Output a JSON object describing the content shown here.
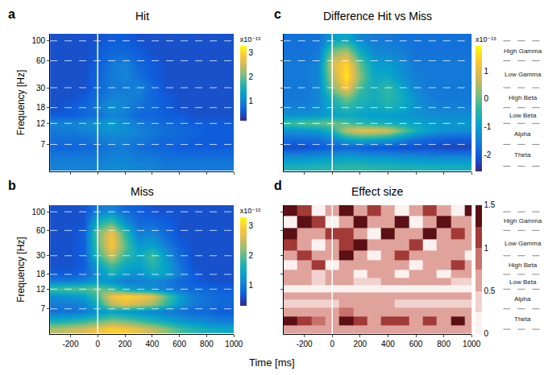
{
  "figure": {
    "xlabel": "Time [ms]"
  },
  "chart_data": [
    {
      "type": "heatmap",
      "panel": "a",
      "title": "Hit",
      "ylabel": "Frequency [Hz]",
      "log": "y",
      "grid": true,
      "tick_labels": "y",
      "color": "parula",
      "onset_ms": 0,
      "x": [
        -300,
        -200,
        -100,
        0,
        100,
        200,
        300,
        400,
        500,
        600,
        700,
        800,
        900,
        1000
      ],
      "y": [
        4,
        5,
        6.5,
        8,
        10,
        12,
        15,
        18,
        23,
        30,
        40,
        55,
        75,
        105
      ],
      "xlim": [
        -350,
        1000
      ],
      "xticks": [
        -200,
        0,
        200,
        400,
        600,
        800,
        1000
      ],
      "ylim": [
        3.5,
        120
      ],
      "yticks": [
        7,
        12,
        18,
        30,
        60,
        100
      ],
      "colorbar": {
        "title": "x10⁻¹⁵",
        "range": [
          0.2,
          3.3
        ],
        "ticks": [
          1,
          2,
          3
        ]
      },
      "z": [
        [
          1.0,
          1.0,
          1.0,
          1.0,
          1.1,
          1.1,
          1.0,
          1.0,
          0.9,
          0.9,
          0.9,
          0.9,
          0.9,
          0.9
        ],
        [
          0.9,
          0.9,
          0.9,
          0.9,
          1.0,
          1.0,
          0.9,
          0.9,
          0.8,
          0.8,
          0.8,
          0.8,
          0.8,
          0.8
        ],
        [
          0.7,
          0.7,
          0.7,
          0.8,
          0.9,
          0.9,
          0.8,
          0.7,
          0.7,
          0.6,
          0.6,
          0.6,
          0.6,
          0.6
        ],
        [
          0.8,
          0.8,
          0.8,
          0.9,
          1.0,
          1.0,
          0.9,
          0.8,
          0.7,
          0.7,
          0.6,
          0.6,
          0.6,
          0.6
        ],
        [
          0.9,
          0.9,
          1.0,
          1.1,
          1.2,
          1.1,
          1.0,
          0.9,
          0.8,
          0.7,
          0.7,
          0.6,
          0.6,
          0.6
        ],
        [
          1.0,
          1.0,
          1.1,
          1.2,
          1.3,
          1.1,
          0.9,
          0.8,
          0.7,
          0.7,
          0.6,
          0.6,
          0.6,
          0.6
        ],
        [
          0.6,
          0.6,
          0.7,
          0.8,
          1.0,
          0.9,
          0.7,
          0.7,
          0.6,
          0.6,
          0.5,
          0.5,
          0.5,
          0.5
        ],
        [
          0.5,
          0.6,
          0.7,
          0.9,
          1.2,
          1.0,
          0.8,
          0.7,
          0.6,
          0.5,
          0.5,
          0.5,
          0.5,
          0.5
        ],
        [
          0.5,
          0.5,
          0.6,
          0.8,
          1.0,
          1.0,
          0.9,
          0.7,
          0.6,
          0.5,
          0.5,
          0.5,
          0.5,
          0.5
        ],
        [
          0.5,
          0.5,
          0.5,
          0.7,
          0.9,
          0.9,
          1.0,
          0.7,
          0.5,
          0.5,
          0.5,
          0.5,
          0.5,
          0.5
        ],
        [
          0.5,
          0.5,
          0.5,
          0.7,
          0.9,
          1.0,
          0.8,
          0.6,
          0.5,
          0.5,
          0.5,
          0.5,
          0.5,
          0.5
        ],
        [
          0.5,
          0.5,
          0.5,
          0.6,
          0.9,
          1.0,
          0.7,
          0.6,
          0.5,
          0.5,
          0.5,
          0.5,
          0.5,
          0.5
        ],
        [
          0.5,
          0.5,
          0.5,
          0.6,
          0.7,
          0.7,
          0.6,
          0.5,
          0.5,
          0.5,
          0.5,
          0.5,
          0.5,
          0.5
        ],
        [
          0.5,
          0.5,
          0.5,
          0.5,
          0.6,
          0.6,
          0.5,
          0.5,
          0.5,
          0.5,
          0.5,
          0.5,
          0.5,
          0.5
        ]
      ]
    },
    {
      "type": "heatmap",
      "panel": "b",
      "title": "Miss",
      "ylabel": "Frequency [Hz]",
      "log": "y",
      "grid": true,
      "tick_labels": true,
      "color": "parula",
      "onset_ms": 0,
      "x": [
        -300,
        -200,
        -100,
        0,
        100,
        200,
        300,
        400,
        500,
        600,
        700,
        800,
        900,
        1000
      ],
      "y": [
        4,
        5,
        6.5,
        8,
        10,
        12,
        15,
        18,
        23,
        30,
        40,
        55,
        75,
        105
      ],
      "xlim": [
        -350,
        1000
      ],
      "xticks": [
        -200,
        0,
        200,
        400,
        600,
        800,
        1000
      ],
      "ylim": [
        3.5,
        120
      ],
      "yticks": [
        7,
        12,
        18,
        30,
        60,
        100
      ],
      "colorbar": {
        "title": "x10⁻¹⁵",
        "range": [
          0.3,
          3.3
        ],
        "ticks": [
          1,
          2,
          3
        ]
      },
      "z": [
        [
          2.4,
          2.5,
          2.6,
          2.8,
          3.0,
          2.9,
          2.7,
          2.5,
          2.2,
          1.9,
          1.7,
          1.6,
          1.5,
          1.5
        ],
        [
          1.6,
          1.7,
          1.8,
          2.0,
          2.2,
          2.1,
          1.9,
          1.7,
          1.5,
          1.3,
          1.2,
          1.1,
          1.0,
          1.0
        ],
        [
          0.9,
          0.9,
          1.0,
          1.2,
          1.4,
          1.3,
          1.2,
          1.1,
          1.0,
          0.9,
          0.8,
          0.8,
          0.7,
          0.7
        ],
        [
          1.0,
          1.0,
          1.1,
          1.6,
          2.4,
          2.7,
          2.5,
          2.3,
          1.8,
          1.3,
          1.0,
          0.9,
          0.8,
          0.8
        ],
        [
          1.2,
          1.3,
          1.4,
          1.9,
          2.8,
          3.0,
          2.9,
          2.7,
          2.0,
          1.4,
          1.0,
          0.9,
          0.8,
          0.8
        ],
        [
          1.9,
          2.0,
          2.0,
          2.1,
          1.9,
          1.5,
          1.3,
          1.2,
          1.0,
          0.9,
          0.8,
          0.8,
          0.7,
          0.7
        ],
        [
          1.0,
          1.0,
          1.1,
          1.3,
          1.2,
          1.0,
          1.0,
          1.1,
          1.0,
          0.8,
          0.7,
          0.6,
          0.6,
          0.6
        ],
        [
          0.7,
          0.7,
          0.8,
          1.2,
          1.6,
          1.3,
          1.2,
          1.5,
          1.4,
          1.0,
          0.7,
          0.6,
          0.6,
          0.6
        ],
        [
          0.6,
          0.6,
          0.7,
          1.4,
          1.9,
          1.5,
          1.4,
          1.7,
          1.4,
          0.9,
          0.6,
          0.6,
          0.6,
          0.6
        ],
        [
          0.6,
          0.6,
          0.7,
          1.8,
          2.5,
          1.8,
          1.5,
          1.9,
          1.3,
          0.8,
          0.6,
          0.6,
          0.6,
          0.6
        ],
        [
          0.6,
          0.6,
          0.7,
          2.0,
          2.9,
          2.0,
          1.3,
          1.4,
          1.0,
          0.7,
          0.6,
          0.6,
          0.6,
          0.6
        ],
        [
          0.6,
          0.6,
          0.7,
          2.1,
          2.8,
          1.8,
          1.0,
          1.1,
          0.8,
          0.6,
          0.6,
          0.6,
          0.6,
          0.6
        ],
        [
          0.6,
          0.6,
          0.6,
          1.6,
          1.9,
          1.2,
          0.8,
          0.8,
          0.7,
          0.6,
          0.6,
          0.6,
          0.6,
          0.6
        ],
        [
          0.6,
          0.6,
          0.6,
          1.0,
          1.1,
          0.8,
          0.7,
          0.6,
          0.6,
          0.6,
          0.6,
          0.6,
          0.6,
          0.6
        ]
      ]
    },
    {
      "type": "heatmap",
      "panel": "c",
      "title": "Difference Hit vs Miss",
      "log": "y",
      "grid": true,
      "tick_labels": false,
      "color": "parula",
      "onset_ms": 0,
      "x": [
        -300,
        -200,
        -100,
        0,
        100,
        200,
        300,
        400,
        500,
        600,
        700,
        800,
        900,
        1000
      ],
      "y": [
        4,
        5,
        6.5,
        8,
        10,
        12,
        15,
        18,
        23,
        30,
        40,
        55,
        75,
        105
      ],
      "xlim": [
        -350,
        1000
      ],
      "xticks": [
        -200,
        0,
        200,
        400,
        600,
        800,
        1000
      ],
      "ylim": [
        3.5,
        120
      ],
      "yticks": [
        7,
        12,
        18,
        30,
        60,
        100
      ],
      "colorbar": {
        "title": "x10⁻¹⁵",
        "range": [
          -2.6,
          1.9
        ],
        "ticks": [
          -2,
          -1,
          0,
          1
        ]
      },
      "bands": [
        {
          "label": "Theta",
          "from": 4,
          "to": 7
        },
        {
          "label": "Alpha",
          "from": 7,
          "to": 12
        },
        {
          "label": "Low Beta",
          "from": 12,
          "to": 18
        },
        {
          "label": "High Beta",
          "from": 18,
          "to": 30
        },
        {
          "label": "Low Gamma",
          "from": 30,
          "to": 60
        },
        {
          "label": "High Gamma",
          "from": 60,
          "to": 100
        }
      ],
      "z": [
        [
          -0.6,
          -0.6,
          -0.5,
          -0.5,
          -0.4,
          -0.4,
          -0.5,
          -0.5,
          -0.6,
          -0.6,
          -0.6,
          -0.7,
          -0.7,
          -0.7
        ],
        [
          -1.2,
          -1.2,
          -1.1,
          -1.0,
          -0.9,
          -1.0,
          -1.1,
          -1.1,
          -1.2,
          -1.2,
          -1.3,
          -1.3,
          -1.3,
          -1.3
        ],
        [
          -2.2,
          -2.2,
          -2.1,
          -2.0,
          -1.9,
          -2.0,
          -2.1,
          -2.1,
          -2.2,
          -2.2,
          -2.2,
          -2.3,
          -2.3,
          -2.3
        ],
        [
          -1.8,
          -1.8,
          -1.7,
          -1.4,
          -0.9,
          -0.7,
          -0.8,
          -1.0,
          -1.4,
          -1.7,
          -1.9,
          -2.0,
          -2.0,
          -2.0
        ],
        [
          -1.2,
          -1.1,
          -1.0,
          -0.5,
          0.6,
          1.0,
          1.0,
          0.8,
          0.1,
          -0.6,
          -1.0,
          -1.2,
          -1.3,
          -1.3
        ],
        [
          -0.2,
          -0.1,
          0.0,
          0.1,
          -0.1,
          -0.4,
          -0.6,
          -0.7,
          -0.8,
          -0.9,
          -1.0,
          -1.1,
          -1.1,
          -1.1
        ],
        [
          -1.2,
          -1.2,
          -1.1,
          -0.9,
          -0.8,
          -0.9,
          -1.0,
          -1.0,
          -1.1,
          -1.2,
          -1.3,
          -1.3,
          -1.3,
          -1.3
        ],
        [
          -1.5,
          -1.5,
          -1.3,
          -0.8,
          -0.4,
          -0.7,
          -0.8,
          -0.6,
          -0.8,
          -1.2,
          -1.4,
          -1.5,
          -1.5,
          -1.5
        ],
        [
          -1.6,
          -1.6,
          -1.4,
          -0.5,
          0.1,
          -0.5,
          -0.7,
          -0.4,
          -0.7,
          -1.2,
          -1.5,
          -1.6,
          -1.6,
          -1.6
        ],
        [
          -1.6,
          -1.6,
          -1.4,
          0.2,
          1.2,
          -0.2,
          -0.7,
          -0.3,
          -0.9,
          -1.4,
          -1.6,
          -1.6,
          -1.6,
          -1.6
        ],
        [
          -1.6,
          -1.6,
          -1.4,
          0.6,
          1.7,
          0.2,
          -0.8,
          -0.8,
          -1.2,
          -1.5,
          -1.6,
          -1.6,
          -1.6,
          -1.6
        ],
        [
          -1.6,
          -1.6,
          -1.4,
          0.9,
          1.5,
          0.0,
          -1.0,
          -1.0,
          -1.3,
          -1.6,
          -1.6,
          -1.6,
          -1.6,
          -1.6
        ],
        [
          -1.7,
          -1.7,
          -1.6,
          0.2,
          0.6,
          -0.7,
          -1.3,
          -1.4,
          -1.5,
          -1.7,
          -1.7,
          -1.7,
          -1.7,
          -1.7
        ],
        [
          -1.7,
          -1.7,
          -1.7,
          -1.0,
          -0.8,
          -1.4,
          -1.6,
          -1.6,
          -1.7,
          -1.7,
          -1.7,
          -1.7,
          -1.7,
          -1.7
        ]
      ]
    },
    {
      "type": "heatmap",
      "panel": "d",
      "title": "Effect size",
      "log": "y",
      "grid": false,
      "tick_labels": "x",
      "color": "reds",
      "onset_ms": 0,
      "x": [
        -300,
        -200,
        -100,
        0,
        100,
        200,
        300,
        400,
        500,
        600,
        700,
        800,
        900,
        1000
      ],
      "y": [
        4,
        5,
        6.5,
        8,
        10,
        12,
        15,
        18,
        23,
        30,
        40,
        55,
        75,
        105
      ],
      "xlim": [
        -350,
        1000
      ],
      "xticks": [
        -200,
        0,
        200,
        400,
        600,
        800,
        1000
      ],
      "ylim": [
        3.5,
        120
      ],
      "yticks": [
        7,
        12,
        18,
        30,
        60,
        100
      ],
      "colorbar": {
        "range": [
          0,
          1.5
        ],
        "ticks": [
          0,
          0.5,
          1,
          1.5
        ]
      },
      "bands": [
        {
          "label": "Theta",
          "from": 4,
          "to": 7
        },
        {
          "label": "Alpha",
          "from": 7,
          "to": 12
        },
        {
          "label": "Low Beta",
          "from": 12,
          "to": 18
        },
        {
          "label": "High Beta",
          "from": 18,
          "to": 30
        },
        {
          "label": "Low Gamma",
          "from": 30,
          "to": 60
        },
        {
          "label": "High Gamma",
          "from": 60,
          "to": 100
        }
      ],
      "z": [
        [
          0.6,
          0.6,
          0.6,
          0.6,
          0.6,
          0.6,
          0.6,
          0.6,
          0.6,
          0.6,
          0.6,
          0.6,
          0.6,
          0.6
        ],
        [
          1.3,
          1.2,
          0.9,
          0.6,
          1.3,
          1.2,
          0.6,
          1.1,
          1.2,
          0.6,
          1.1,
          0.6,
          1.3,
          0.6
        ],
        [
          0.6,
          0.6,
          0.6,
          0.6,
          0.9,
          0.6,
          0.6,
          0.6,
          0.6,
          0.6,
          0.6,
          0.6,
          0.6,
          0.6
        ],
        [
          0.4,
          0.4,
          0.4,
          0.4,
          0.6,
          0.6,
          0.6,
          0.6,
          0.4,
          0.4,
          0.4,
          0.4,
          0.4,
          0.4
        ],
        [
          0.6,
          0.6,
          0.6,
          0.6,
          0.6,
          0.6,
          0.6,
          0.6,
          0.6,
          0.6,
          0.6,
          0.6,
          0.6,
          0.6
        ],
        [
          0.1,
          0.1,
          0.1,
          0.1,
          0.1,
          0.1,
          0.1,
          0.1,
          0.1,
          0.1,
          0.1,
          0.1,
          0.1,
          0.1
        ],
        [
          0.6,
          0.6,
          0.4,
          0.6,
          0.6,
          0.4,
          0.4,
          0.6,
          0.6,
          0.6,
          0.6,
          0.6,
          0.4,
          0.4
        ],
        [
          0.6,
          0.6,
          0.4,
          0.6,
          0.6,
          0.1,
          0.6,
          0.6,
          0.1,
          0.6,
          0.6,
          0.1,
          0.6,
          0.6
        ],
        [
          0.1,
          0.6,
          1.1,
          0.1,
          0.6,
          0.6,
          0.6,
          0.6,
          0.6,
          0.1,
          0.6,
          0.6,
          1.1,
          0.6
        ],
        [
          0.6,
          1.1,
          0.6,
          0.6,
          1.3,
          0.6,
          0.1,
          0.6,
          1.1,
          0.6,
          0.6,
          0.6,
          0.6,
          0.1
        ],
        [
          1.1,
          0.6,
          0.1,
          0.6,
          1.1,
          1.3,
          0.6,
          0.6,
          0.6,
          1.1,
          0.1,
          0.6,
          0.6,
          0.6
        ],
        [
          1.3,
          0.6,
          0.6,
          1.1,
          1.1,
          0.6,
          0.1,
          1.3,
          0.6,
          0.6,
          1.3,
          0.6,
          1.1,
          0.6
        ],
        [
          0.1,
          1.3,
          1.1,
          0.1,
          0.6,
          1.3,
          0.6,
          0.6,
          1.3,
          0.1,
          0.6,
          1.3,
          0.6,
          0.6
        ],
        [
          1.3,
          1.1,
          0.1,
          0.6,
          1.3,
          0.6,
          1.1,
          0.6,
          0.1,
          0.6,
          1.1,
          0.6,
          0.1,
          1.3
        ]
      ]
    }
  ]
}
